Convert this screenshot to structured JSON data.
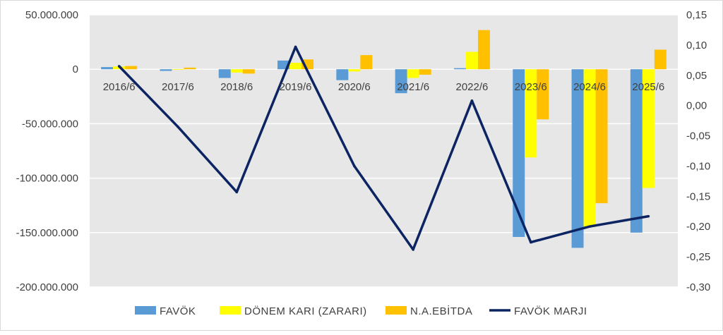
{
  "chart_data": {
    "type": "bar",
    "secondary_type": "line",
    "categories": [
      "2016/6",
      "2017/6",
      "2018/6",
      "2019/6",
      "2020/6",
      "2021/6",
      "2022/6",
      "2023/6",
      "2024/6",
      "2025/6"
    ],
    "series": [
      {
        "name": "FAVÖK",
        "type": "bar",
        "axis": "left",
        "color": "#5B9BD5",
        "values": [
          2000000,
          -1500000,
          -8000000,
          8000000,
          -10000000,
          -22000000,
          1000000,
          -154000000,
          -164000000,
          -150000000
        ]
      },
      {
        "name": "DÖNEM KARI (ZARARI)",
        "type": "bar",
        "axis": "left",
        "color": "#FFFF00",
        "values": [
          2500000,
          -500000,
          -3000000,
          6000000,
          -2000000,
          -8000000,
          16000000,
          -81000000,
          -145000000,
          -109000000
        ]
      },
      {
        "name": "N.A.EBİTDA",
        "type": "bar",
        "axis": "left",
        "color": "#FFC000",
        "values": [
          3000000,
          1500000,
          -4000000,
          9000000,
          13000000,
          -5000000,
          36000000,
          -46000000,
          -123000000,
          18000000
        ]
      },
      {
        "name": "FAVÖK MARJI",
        "type": "line",
        "axis": "right",
        "color": "#0D2463",
        "values": [
          0.065,
          -0.035,
          -0.143,
          0.097,
          -0.1,
          -0.238,
          0.008,
          -0.226,
          -0.2,
          -0.183
        ]
      }
    ],
    "left_axis": {
      "min": -200000000,
      "max": 50000000,
      "step": 50000000,
      "tick_labels": [
        "50.000.000",
        "0",
        "-50.000.000",
        "-100.000.000",
        "-150.000.000",
        "-200.000.000"
      ]
    },
    "right_axis": {
      "min": -0.3,
      "max": 0.15,
      "step": 0.05,
      "tick_labels": [
        "0,15",
        "0,10",
        "0,05",
        "0,00",
        "-0,05",
        "-0,10",
        "-0,15",
        "-0,20",
        "-0,25",
        "-0,30"
      ]
    },
    "grid": true,
    "legend_position": "bottom",
    "title": ""
  },
  "colors": {
    "plot_bg": "#E7E7E7",
    "grid": "#FFFFFF",
    "text": "#404040"
  }
}
